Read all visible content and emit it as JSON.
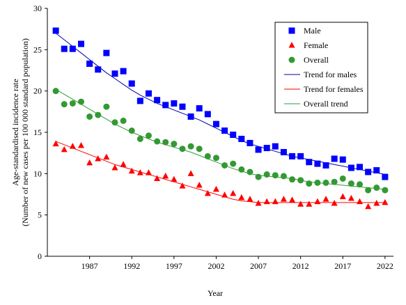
{
  "chart_data": {
    "type": "scatter",
    "xlabel": "Year",
    "ylabel_line1": "Age-standardised incidence rate",
    "ylabel_line2": "(Number of new cases per 100 000 standard population)",
    "xlim": [
      1982,
      2023
    ],
    "ylim": [
      0,
      30
    ],
    "yticks": [
      0,
      5,
      10,
      15,
      20,
      25,
      30
    ],
    "xticks": [
      1987,
      1992,
      1997,
      2002,
      2007,
      2012,
      2017,
      2022
    ],
    "grid": false,
    "legend_position": "top-right",
    "colors": {
      "male": "#0000ff",
      "female": "#ff0000",
      "overall": "#339933",
      "male_trend": "#0000aa",
      "female_trend": "#ff0000",
      "overall_trend": "#339933"
    },
    "x": [
      1983,
      1984,
      1985,
      1986,
      1987,
      1988,
      1989,
      1990,
      1991,
      1992,
      1993,
      1994,
      1995,
      1996,
      1997,
      1998,
      1999,
      2000,
      2001,
      2002,
      2003,
      2004,
      2005,
      2006,
      2007,
      2008,
      2009,
      2010,
      2011,
      2012,
      2013,
      2014,
      2015,
      2016,
      2017,
      2018,
      2019,
      2020,
      2021,
      2022
    ],
    "series": [
      {
        "name": "Male",
        "kind": "points",
        "marker": "square",
        "values": [
          27.3,
          25.1,
          25.1,
          25.7,
          23.3,
          22.6,
          24.6,
          22.1,
          22.4,
          20.9,
          18.8,
          19.7,
          18.9,
          18.3,
          18.5,
          18.1,
          16.9,
          17.9,
          17.2,
          16.0,
          15.2,
          14.7,
          14.2,
          13.7,
          12.9,
          13.1,
          13.3,
          12.6,
          12.1,
          12.1,
          11.4,
          11.2,
          11.0,
          11.8,
          11.7,
          10.7,
          10.8,
          10.2,
          10.4,
          9.6
        ]
      },
      {
        "name": "Female",
        "kind": "points",
        "marker": "triangle",
        "values": [
          13.6,
          12.9,
          13.3,
          13.4,
          11.3,
          11.8,
          12.0,
          10.7,
          11.1,
          10.3,
          10.1,
          10.1,
          9.4,
          9.7,
          9.3,
          8.5,
          10.0,
          8.6,
          7.6,
          8.1,
          7.4,
          7.6,
          7.1,
          6.9,
          6.4,
          6.6,
          6.6,
          6.9,
          6.8,
          6.3,
          6.3,
          6.6,
          6.9,
          6.4,
          7.2,
          7.0,
          6.6,
          6.0,
          6.4,
          6.5
        ]
      },
      {
        "name": "Overall",
        "kind": "points",
        "marker": "circle",
        "values": [
          20.0,
          18.4,
          18.5,
          18.7,
          16.9,
          17.1,
          18.1,
          16.2,
          16.4,
          15.2,
          14.2,
          14.6,
          13.9,
          13.8,
          13.6,
          13.0,
          13.3,
          13.0,
          12.1,
          11.9,
          11.0,
          11.2,
          10.5,
          10.2,
          9.6,
          9.9,
          9.8,
          9.7,
          9.3,
          9.2,
          8.8,
          8.9,
          8.9,
          9.0,
          9.4,
          8.8,
          8.7,
          8.0,
          8.3,
          8.0
        ]
      },
      {
        "name": "Trend for males",
        "kind": "line",
        "values": [
          27.0,
          26.2,
          25.4,
          24.6,
          23.8,
          23.0,
          22.2,
          21.5,
          20.8,
          20.1,
          19.5,
          19.0,
          18.5,
          18.1,
          17.7,
          17.3,
          16.9,
          16.5,
          16.0,
          15.5,
          15.0,
          14.5,
          14.0,
          13.6,
          13.3,
          13.0,
          12.7,
          12.4,
          12.1,
          11.9,
          11.7,
          11.5,
          11.3,
          11.1,
          10.9,
          10.7,
          10.5,
          10.3,
          10.1,
          9.9
        ]
      },
      {
        "name": "Trend for females",
        "kind": "line",
        "values": [
          13.9,
          13.5,
          13.1,
          12.7,
          12.3,
          11.9,
          11.5,
          11.1,
          10.8,
          10.5,
          10.2,
          9.9,
          9.6,
          9.3,
          9.0,
          8.7,
          8.4,
          8.1,
          7.8,
          7.5,
          7.2,
          6.9,
          6.7,
          6.6,
          6.5,
          6.5,
          6.5,
          6.5,
          6.5,
          6.5,
          6.5,
          6.5,
          6.5,
          6.5,
          6.5,
          6.5,
          6.5,
          6.5,
          6.5,
          6.5
        ]
      },
      {
        "name": "Overall trend",
        "kind": "line",
        "values": [
          20.2,
          19.6,
          19.0,
          18.4,
          17.8,
          17.2,
          16.6,
          16.0,
          15.5,
          15.0,
          14.6,
          14.2,
          13.8,
          13.5,
          13.2,
          12.9,
          12.6,
          12.2,
          11.8,
          11.4,
          11.0,
          10.6,
          10.3,
          10.0,
          9.8,
          9.7,
          9.6,
          9.5,
          9.4,
          9.2,
          9.0,
          8.9,
          8.8,
          8.7,
          8.6,
          8.5,
          8.4,
          8.3,
          8.2,
          8.1
        ]
      }
    ]
  }
}
